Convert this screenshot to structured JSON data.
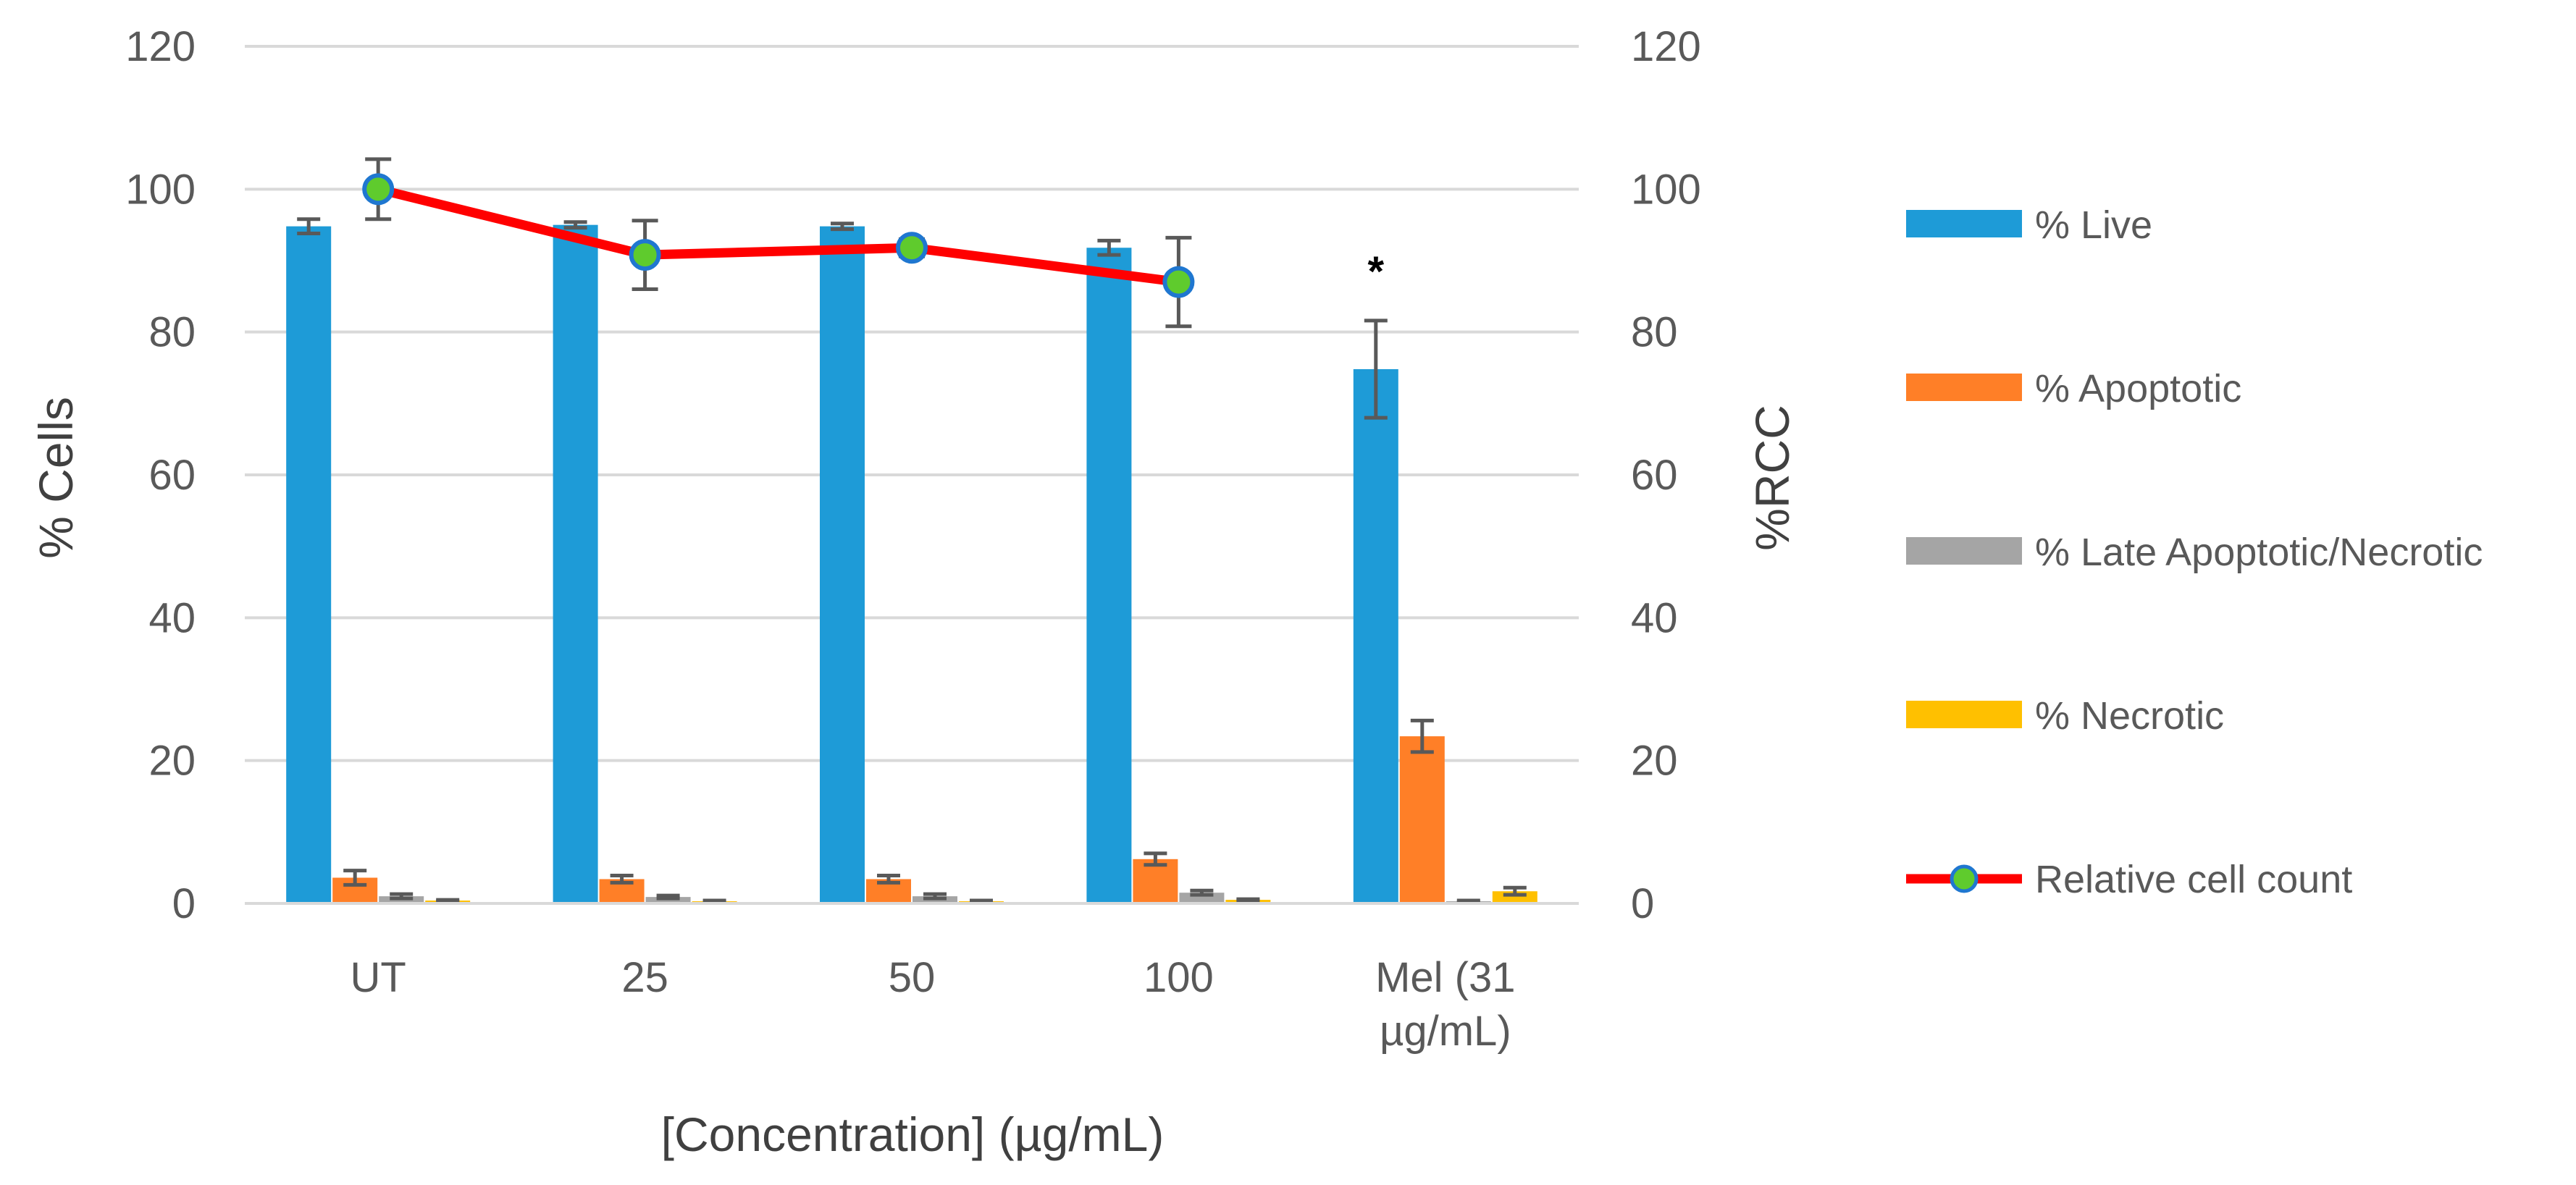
{
  "chart_data": {
    "type": "bar",
    "categories": [
      "UT",
      "25",
      "50",
      "100",
      "Mel (31 µg/mL)"
    ],
    "category_lines": [
      [
        "UT"
      ],
      [
        "25"
      ],
      [
        "50"
      ],
      [
        "100"
      ],
      [
        "Mel (31",
        "µg/mL)"
      ]
    ],
    "series": [
      {
        "name": "% Live",
        "color": "#1E9BD7",
        "values": [
          94.8,
          95.0,
          94.8,
          91.8,
          74.8
        ],
        "errors": [
          1.0,
          0.4,
          0.4,
          1.0,
          6.8
        ]
      },
      {
        "name": "% Apoptotic",
        "color": "#FF7F27",
        "values": [
          3.6,
          3.4,
          3.4,
          6.2,
          23.4
        ],
        "errors": [
          1.0,
          0.5,
          0.5,
          0.8,
          2.2
        ]
      },
      {
        "name": "% Late Apoptotic/Necrotic",
        "color": "#A5A5A5",
        "values": [
          1.0,
          0.9,
          1.0,
          1.5,
          0.3
        ],
        "errors": [
          0.3,
          0.2,
          0.3,
          0.3,
          0.1
        ]
      },
      {
        "name": "% Necrotic",
        "color": "#FFC000",
        "values": [
          0.4,
          0.3,
          0.3,
          0.5,
          1.7
        ],
        "errors": [
          0.1,
          0.1,
          0.1,
          0.1,
          0.5
        ]
      }
    ],
    "line_series": {
      "name": "Relative cell count",
      "color": "#FF0000",
      "marker_color": "#5FCB2D",
      "marker_edge": "#1F77D0",
      "values": [
        100.0,
        90.8,
        91.8,
        87.0
      ],
      "errors": [
        4.2,
        4.8,
        1.2,
        6.2
      ]
    },
    "significance": {
      "label": "*",
      "category_index": 4
    },
    "xlabel": "[Concentration]  (µg/mL)",
    "ylabel": "% Cells",
    "y2label": "%RCC",
    "ylim": [
      0,
      120
    ],
    "y2lim": [
      0,
      120
    ],
    "yticks": [
      0,
      20,
      40,
      60,
      80,
      100,
      120
    ],
    "grid": true,
    "legend_position": "right"
  }
}
